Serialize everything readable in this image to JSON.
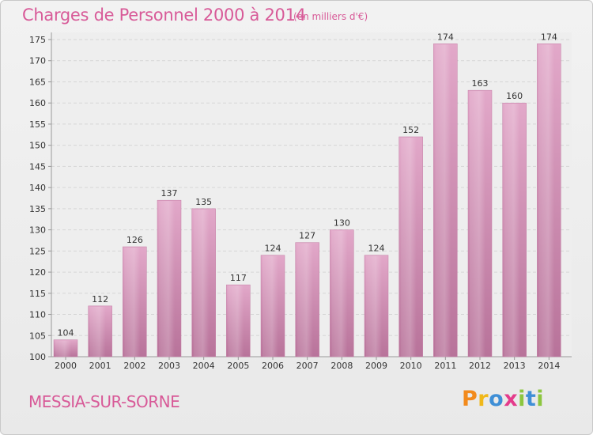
{
  "header": {
    "title": "Charges de Personnel 2000 à 2014",
    "subtitle": "(en milliers d'€)"
  },
  "footer": {
    "commune": "MESSIA-SUR-SORNE",
    "logo": {
      "letters": [
        "P",
        "r",
        "o",
        "x",
        "i",
        "t",
        "i"
      ],
      "colors": [
        "#f28a1c",
        "#f0b81a",
        "#3f8fd6",
        "#e43b8b",
        "#8cc63f",
        "#3f8fd6",
        "#8cc63f"
      ]
    }
  },
  "chart_data": {
    "type": "bar",
    "categories": [
      "2000",
      "2001",
      "2002",
      "2003",
      "2004",
      "2005",
      "2006",
      "2007",
      "2008",
      "2009",
      "2010",
      "2011",
      "2012",
      "2013",
      "2014"
    ],
    "values": [
      104,
      112,
      126,
      137,
      135,
      117,
      124,
      127,
      130,
      124,
      152,
      174,
      163,
      160,
      174
    ],
    "title": "Charges de Personnel 2000 à 2014",
    "ylim": [
      100,
      175
    ],
    "yticks": [
      100,
      105,
      110,
      115,
      120,
      125,
      130,
      135,
      140,
      145,
      150,
      155,
      160,
      165,
      170,
      175
    ],
    "grid": true,
    "bar_color": "#d990b8"
  }
}
